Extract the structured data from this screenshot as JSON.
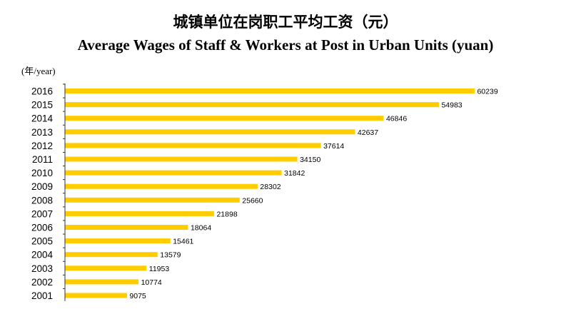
{
  "chart_data": {
    "type": "bar",
    "orientation": "horizontal",
    "title": "城镇单位在岗职工平均工资（元）",
    "subtitle": "Average Wages of Staff & Workers at Post in Urban Units (yuan)",
    "ylabel": "(年/year)",
    "xlabel": "",
    "categories": [
      "2016",
      "2015",
      "2014",
      "2013",
      "2012",
      "2011",
      "2010",
      "2009",
      "2008",
      "2007",
      "2006",
      "2005",
      "2004",
      "2003",
      "2002",
      "2001"
    ],
    "values": [
      60239,
      54983,
      46846,
      42637,
      37614,
      34150,
      31842,
      28302,
      25660,
      21898,
      18064,
      15461,
      13579,
      11953,
      10774,
      9075
    ],
    "xlim": [
      0,
      62500
    ],
    "bar_color": "#FFCC00",
    "grid": false,
    "legend": "none",
    "data_labels": true
  }
}
